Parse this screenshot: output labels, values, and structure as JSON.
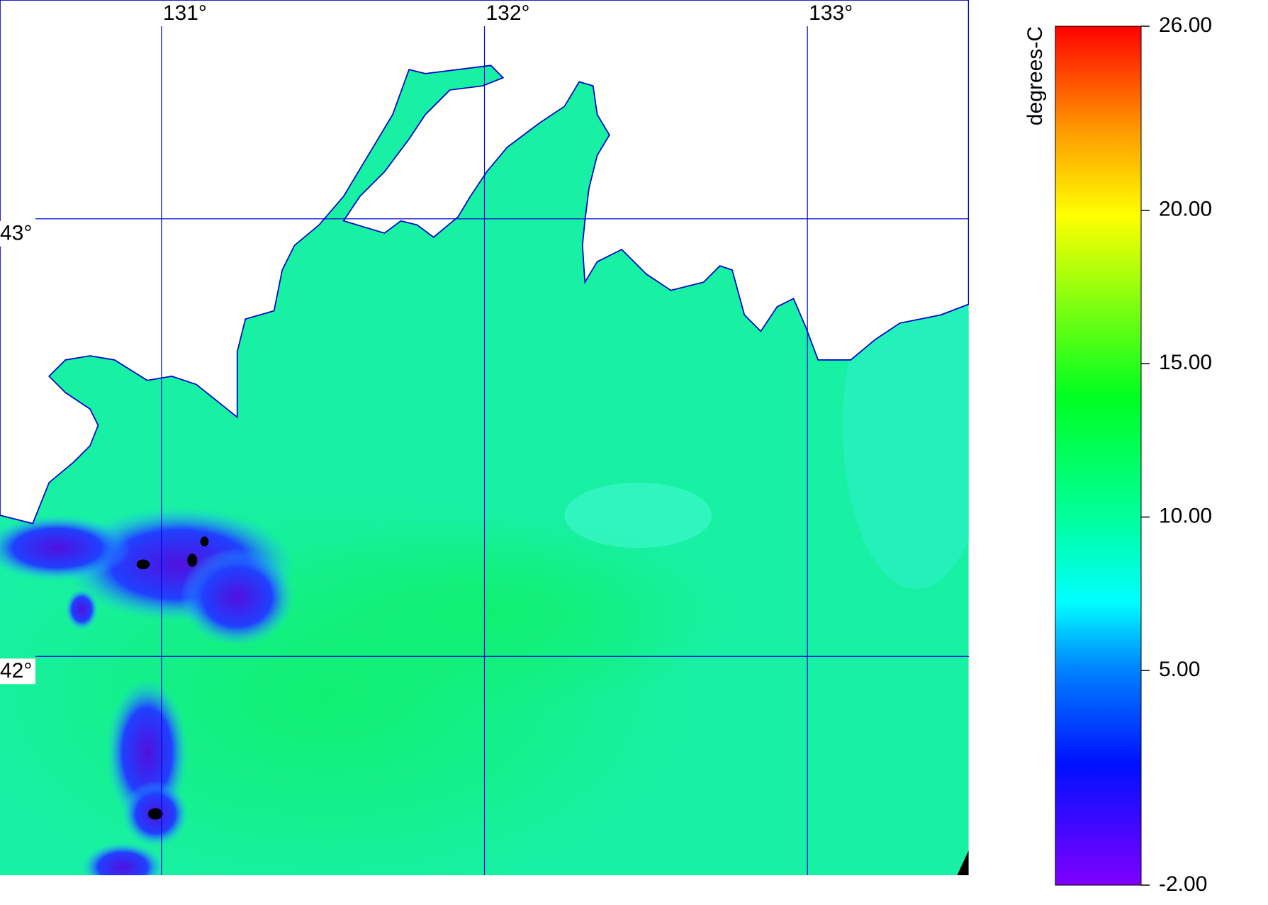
{
  "map": {
    "type": "map",
    "xlim": [
      130.5,
      133.5
    ],
    "ylim": [
      41.5,
      43.5
    ],
    "xticks": [
      {
        "value": 131,
        "label": "131°"
      },
      {
        "value": 132,
        "label": "132°"
      },
      {
        "value": 133,
        "label": "133°"
      }
    ],
    "yticks": [
      {
        "value": 43,
        "label": "43°"
      },
      {
        "value": 42,
        "label": "42°"
      }
    ]
  },
  "colorbar": {
    "title": "degrees-C",
    "lim": [
      -2,
      26
    ],
    "ticks": [
      {
        "value": 26,
        "label": "26.00"
      },
      {
        "value": 20,
        "label": "20.00"
      },
      {
        "value": 15,
        "label": "15.00"
      },
      {
        "value": 10,
        "label": "10.00"
      },
      {
        "value": 5,
        "label": "5.00"
      },
      {
        "value": -2,
        "label": "-2.00"
      }
    ]
  }
}
